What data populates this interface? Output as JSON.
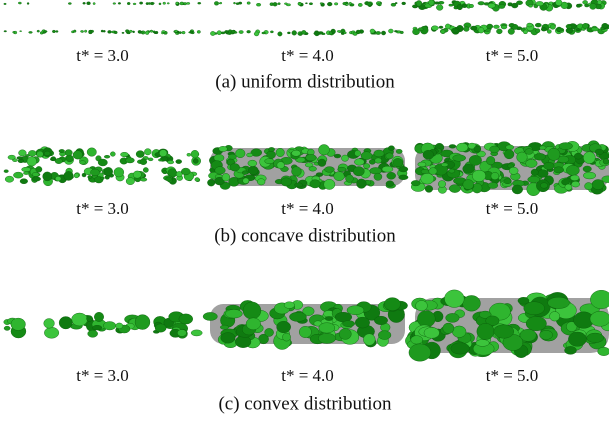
{
  "rows": [
    {
      "labels": [
        "t* = 3.0",
        "t* = 4.0",
        "t* = 5.0"
      ],
      "caption": "(a) uniform distribution"
    },
    {
      "labels": [
        "t* = 3.0",
        "t* = 4.0",
        "t* = 5.0"
      ],
      "caption": "(b) concave distribution"
    },
    {
      "labels": [
        "t* = 3.0",
        "t* = 4.0",
        "t* = 5.0"
      ],
      "caption": "(c) convex distribution"
    }
  ]
}
